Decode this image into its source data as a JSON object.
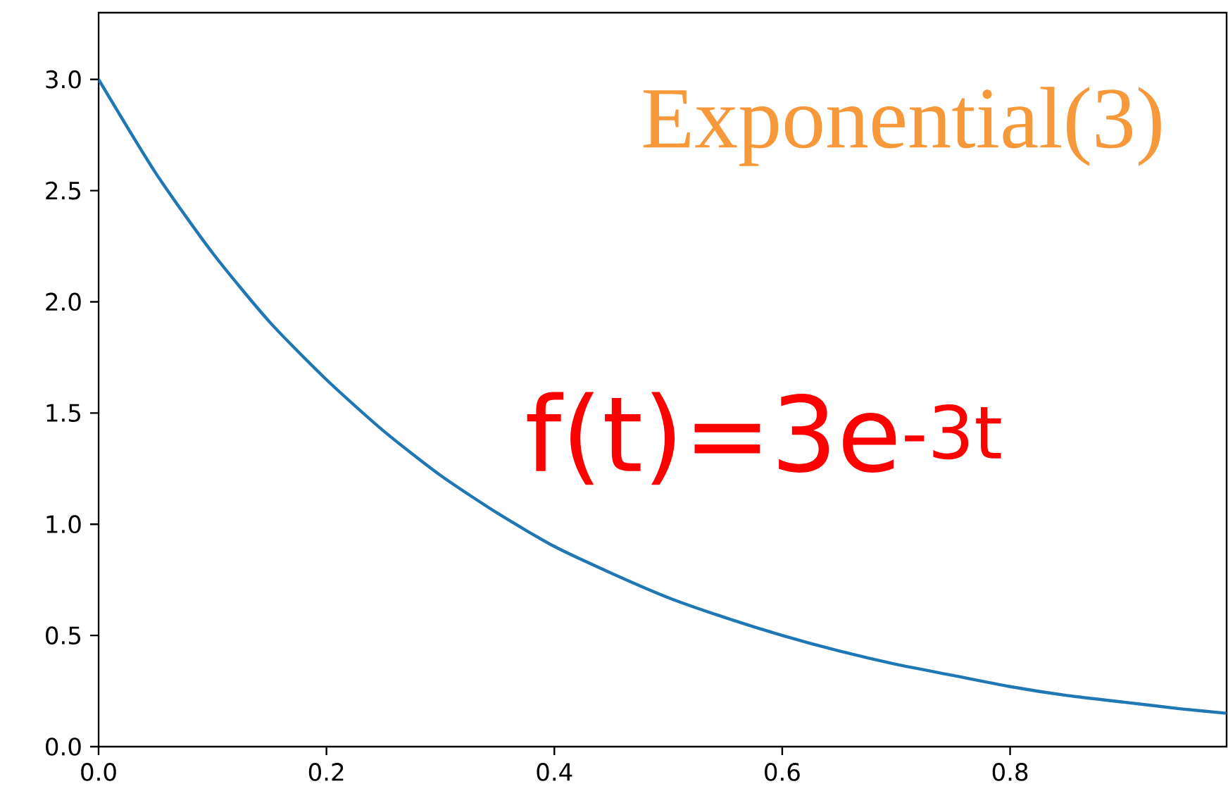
{
  "chart_data": {
    "type": "line",
    "x": [
      0,
      0.05,
      0.1,
      0.15,
      0.2,
      0.25,
      0.3,
      0.35,
      0.4,
      0.45,
      0.5,
      0.55,
      0.6,
      0.65,
      0.7,
      0.75,
      0.8,
      0.85,
      0.9,
      0.95,
      0.99
    ],
    "values": [
      3.0,
      2.58,
      2.22,
      1.91,
      1.65,
      1.42,
      1.22,
      1.05,
      0.9,
      0.78,
      0.67,
      0.58,
      0.5,
      0.43,
      0.37,
      0.32,
      0.27,
      0.23,
      0.2,
      0.17,
      0.15
    ],
    "color": "#1f77b4",
    "line_style": "solid",
    "marker": "none",
    "xlim": [
      0,
      0.99
    ],
    "ylim": [
      0,
      3.3
    ],
    "xticks": [
      {
        "value": 0,
        "label": "0.0"
      },
      {
        "value": 0.2,
        "label": "0.2"
      },
      {
        "value": 0.4,
        "label": "0.4"
      },
      {
        "value": 0.6,
        "label": "0.6"
      },
      {
        "value": 0.8,
        "label": "0.8"
      }
    ],
    "yticks": [
      {
        "value": 0,
        "label": "0.0"
      },
      {
        "value": 0.5,
        "label": "0.5"
      },
      {
        "value": 1,
        "label": "1.0"
      },
      {
        "value": 1.5,
        "label": "1.5"
      },
      {
        "value": 2,
        "label": "2.0"
      },
      {
        "value": 2.5,
        "label": "2.5"
      },
      {
        "value": 3,
        "label": "3.0"
      }
    ],
    "annotations": [
      "Exponential(3)",
      "f(t)=3e$^{-3t}$"
    ]
  }
}
